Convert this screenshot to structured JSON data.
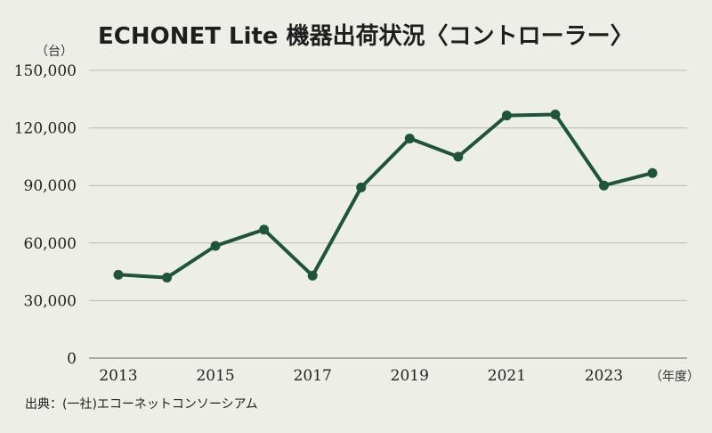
{
  "title": "ECHONET Lite 機器出荷状況〈コントローラー〉",
  "source": "出典：(一社)エコーネットコンソーシアム",
  "colors": {
    "line": "#20543a",
    "background": "#eeeee8",
    "grid": "#b9b9b3"
  },
  "chart_data": {
    "type": "line",
    "title": "ECHONET Lite 機器出荷状況〈コントローラー〉",
    "ylabel": "（台）",
    "xlabel": "（年度）",
    "ylim": [
      0,
      150000
    ],
    "yticks": [
      0,
      30000,
      60000,
      90000,
      120000,
      150000
    ],
    "ytick_labels": [
      "0",
      "30,000",
      "60,000",
      "90,000",
      "120,000",
      "150,000"
    ],
    "xtick_labels": [
      "2013",
      "2015",
      "2017",
      "2019",
      "2021",
      "2023"
    ],
    "grid": true,
    "x": [
      2013,
      2014,
      2015,
      2016,
      2017,
      2018,
      2019,
      2020,
      2021,
      2022,
      2023,
      2024
    ],
    "series": [
      {
        "values": [
          43500,
          42000,
          58500,
          67000,
          43000,
          89000,
          114500,
          105000,
          126500,
          127000,
          90000,
          96500
        ]
      }
    ]
  }
}
